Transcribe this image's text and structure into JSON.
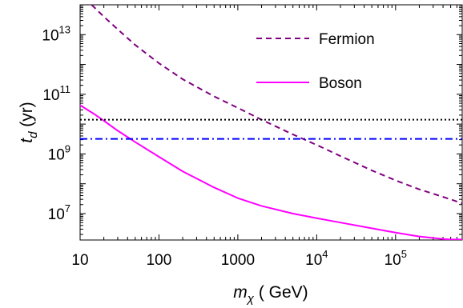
{
  "chart_data": {
    "type": "line",
    "xlabel": {
      "main": "m",
      "sub": "χ",
      "rest": " ( GeV)"
    },
    "ylabel": {
      "main": "t",
      "sub": "d",
      "rest": " (yr)"
    },
    "x_scale": "log",
    "y_scale": "log",
    "xlim": [
      10,
      700000
    ],
    "ylim": [
      1300000,
      100000000000000
    ],
    "x_ticks": [
      {
        "value": 10,
        "label": "10"
      },
      {
        "value": 100,
        "label": "100"
      },
      {
        "value": 1000,
        "label": "1000"
      },
      {
        "value": 10000,
        "label": "10",
        "exp": "4"
      },
      {
        "value": 100000,
        "label": "10",
        "exp": "5"
      }
    ],
    "y_ticks": [
      {
        "value": 10000000,
        "label": "10",
        "exp": "7"
      },
      {
        "value": 1000000000,
        "label": "10",
        "exp": "9"
      },
      {
        "value": 100000000000,
        "label": "10",
        "exp": "11"
      },
      {
        "value": 10000000000000,
        "label": "10",
        "exp": "13"
      }
    ],
    "grid": false,
    "legend_position": "top-right",
    "series": [
      {
        "name": "Fermion",
        "color": "#800080",
        "dash": "dashed",
        "x": [
          14,
          20,
          30,
          50,
          100,
          200,
          500,
          1000,
          2000,
          5000,
          10000,
          20000,
          50000,
          100000,
          200000,
          500000,
          700000
        ],
        "y": [
          100000000000000,
          40000000000000,
          15000000000000,
          4500000000000,
          1100000000000,
          320000000000,
          85000000000,
          35000000000,
          14000000000,
          4500000000,
          2000000000,
          850000000,
          280000000,
          130000000,
          65000000,
          30000000,
          22000000
        ]
      },
      {
        "name": "Boson",
        "color": "#ff00ff",
        "dash": "solid",
        "x": [
          10,
          15,
          20,
          30,
          50,
          100,
          200,
          500,
          1000,
          2000,
          5000,
          10000,
          20000,
          50000,
          100000,
          200000,
          400000,
          500000,
          700000
        ],
        "y": [
          43000000000,
          22000000000,
          13000000000,
          6000000000,
          2500000000,
          800000000,
          260000000,
          75000000,
          33000000,
          18000000,
          10000000,
          7000000,
          5000000,
          3200000,
          2300000,
          1700000,
          1400000,
          1350000,
          1350000
        ]
      },
      {
        "color": "#000000",
        "dash": "dotted",
        "x": [
          10,
          700000
        ],
        "y": [
          14000000000,
          14000000000
        ]
      },
      {
        "color": "#0000ff",
        "dash": "dashdot",
        "x": [
          10,
          700000
        ],
        "y": [
          3200000000,
          3200000000
        ]
      }
    ]
  }
}
